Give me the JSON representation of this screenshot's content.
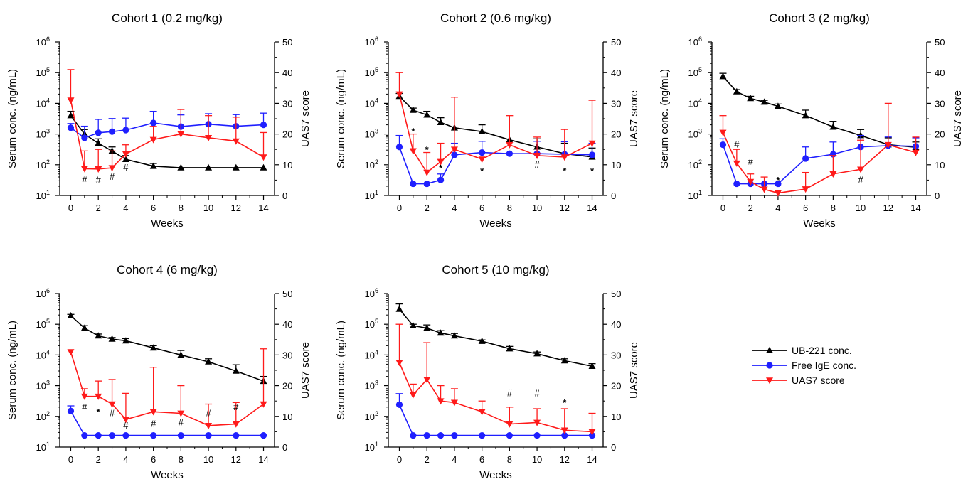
{
  "legend": {
    "entries": [
      {
        "key": "ub221",
        "label": "UB-221 conc.",
        "color": "#000000",
        "marker": "triangle-up"
      },
      {
        "key": "ige",
        "label": "Free IgE conc.",
        "color": "#1f1fff",
        "marker": "circle"
      },
      {
        "key": "uas7",
        "label": "UAS7 score",
        "color": "#ff1a1a",
        "marker": "triangle-down"
      }
    ]
  },
  "chart_data": [
    {
      "type": "line",
      "title": "Cohort 1 (0.2 mg/kg)",
      "xlabel": "Weeks",
      "ylabel_left": "Serum conc. (ng/mL)",
      "ylabel_right": "UAS7 score",
      "x_ticks": [
        0,
        2,
        4,
        6,
        8,
        10,
        12,
        14
      ],
      "xlim": [
        -0.8,
        14.8
      ],
      "ylim_left": [
        10,
        1000000
      ],
      "yscale_left": "log",
      "ylim_right": [
        0,
        50
      ],
      "series": [
        {
          "name": "UB-221 conc.",
          "axis": "left",
          "color": "#000000",
          "marker": "triangle-up",
          "x": [
            0,
            1,
            2,
            3,
            4,
            6,
            8,
            10,
            12,
            14
          ],
          "y": [
            4000,
            1000,
            500,
            280,
            150,
            90,
            80,
            80,
            80,
            80
          ],
          "err_upper": [
            5500,
            1400,
            700,
            380,
            200,
            110,
            null,
            null,
            null,
            null
          ]
        },
        {
          "name": "Free IgE conc.",
          "axis": "left",
          "color": "#1f1fff",
          "marker": "circle",
          "x": [
            0,
            1,
            2,
            3,
            4,
            6,
            8,
            10,
            12,
            14
          ],
          "y": [
            1600,
            750,
            1100,
            1200,
            1350,
            2300,
            1750,
            2100,
            1800,
            2000
          ],
          "err_upper": [
            2200,
            1800,
            3000,
            3200,
            3300,
            5500,
            4200,
            4600,
            4300,
            4800
          ]
        },
        {
          "name": "UAS7 score",
          "axis": "right",
          "color": "#ff1a1a",
          "marker": "triangle-down",
          "x": [
            0,
            1,
            2,
            3,
            4,
            6,
            8,
            10,
            12,
            14
          ],
          "y": [
            31,
            8.7,
            8.6,
            9,
            13.5,
            18.2,
            20,
            18.8,
            17.7,
            12.5
          ],
          "err_upper": [
            41,
            14.5,
            15,
            14.5,
            16.5,
            22.5,
            28,
            26,
            25.5,
            20.5
          ]
        }
      ],
      "annotations": [
        {
          "text": "#",
          "x": 1,
          "y_right": 5
        },
        {
          "text": "#",
          "x": 2,
          "y_right": 5
        },
        {
          "text": "#",
          "x": 3,
          "y_right": 6
        },
        {
          "text": "#",
          "x": 4,
          "y_right": 9
        }
      ]
    },
    {
      "type": "line",
      "title": "Cohort 2 (0.6 mg/kg)",
      "xlabel": "Weeks",
      "ylabel_left": "Serum conc. (ng/mL)",
      "ylabel_right": "UAS7 score",
      "x_ticks": [
        0,
        2,
        4,
        6,
        8,
        10,
        12,
        14
      ],
      "xlim": [
        -0.8,
        14.8
      ],
      "ylim_left": [
        10,
        1000000
      ],
      "yscale_left": "log",
      "ylim_right": [
        0,
        50
      ],
      "series": [
        {
          "name": "UB-221 conc.",
          "axis": "left",
          "color": "#000000",
          "marker": "triangle-up",
          "x": [
            0,
            1,
            2,
            3,
            4,
            6,
            8,
            10,
            12,
            14
          ],
          "y": [
            17000,
            6000,
            4200,
            2400,
            1600,
            1200,
            650,
            380,
            230,
            180
          ],
          "err_upper": [
            21000,
            7000,
            5500,
            3400,
            null,
            2000,
            null,
            700,
            500,
            350
          ]
        },
        {
          "name": "Free IgE conc.",
          "axis": "left",
          "color": "#1f1fff",
          "marker": "circle",
          "x": [
            0,
            1,
            2,
            3,
            4,
            6,
            8,
            10,
            12,
            14
          ],
          "y": [
            380,
            24,
            24,
            32,
            210,
            250,
            230,
            230,
            220,
            210
          ],
          "err_upper": [
            900,
            null,
            null,
            50,
            500,
            580,
            null,
            580,
            560,
            500
          ]
        },
        {
          "name": "UAS7 score",
          "axis": "right",
          "color": "#ff1a1a",
          "marker": "triangle-down",
          "x": [
            0,
            1,
            2,
            3,
            4,
            6,
            8,
            10,
            12,
            14
          ],
          "y": [
            33,
            14.5,
            7.5,
            11,
            15,
            11.8,
            16.5,
            13,
            12.5,
            17
          ],
          "err_upper": [
            40,
            20,
            14,
            17,
            32,
            null,
            26,
            19,
            21.5,
            31
          ]
        }
      ],
      "annotations": [
        {
          "text": "*",
          "x": 1,
          "y_right": 22
        },
        {
          "text": "*",
          "x": 2,
          "y_right": 16
        },
        {
          "text": "*",
          "x": 3,
          "y_right": 10
        },
        {
          "text": "*",
          "x": 6,
          "y_right": 9
        },
        {
          "text": "#",
          "x": 10,
          "y_right": 10
        },
        {
          "text": "*",
          "x": 12,
          "y_right": 9
        },
        {
          "text": "*",
          "x": 14,
          "y_right": 9
        }
      ]
    },
    {
      "type": "line",
      "title": "Cohort 3 (2 mg/kg)",
      "xlabel": "Weeks",
      "ylabel_left": "Serum conc. (ng/mL)",
      "ylabel_right": "UAS7 score",
      "x_ticks": [
        0,
        2,
        4,
        6,
        8,
        10,
        12,
        14
      ],
      "xlim": [
        -0.8,
        14.8
      ],
      "ylim_left": [
        10,
        1000000
      ],
      "yscale_left": "log",
      "ylim_right": [
        0,
        50
      ],
      "series": [
        {
          "name": "UB-221 conc.",
          "axis": "left",
          "color": "#000000",
          "marker": "triangle-up",
          "x": [
            0,
            1,
            2,
            3,
            4,
            6,
            8,
            10,
            12,
            14
          ],
          "y": [
            75000,
            24000,
            14500,
            11000,
            8000,
            4000,
            1700,
            900,
            450,
            370
          ],
          "err_upper": [
            95000,
            28000,
            17000,
            12500,
            9500,
            6000,
            2600,
            1400,
            750,
            550
          ]
        },
        {
          "name": "Free IgE conc.",
          "axis": "left",
          "color": "#1f1fff",
          "marker": "circle",
          "x": [
            0,
            1,
            2,
            3,
            4,
            6,
            8,
            10,
            12,
            14
          ],
          "y": [
            450,
            24,
            24,
            24,
            24,
            160,
            220,
            380,
            420,
            400
          ],
          "err_upper": [
            700,
            null,
            null,
            null,
            null,
            380,
            550,
            900,
            800,
            750
          ]
        },
        {
          "name": "UAS7 score",
          "axis": "right",
          "color": "#ff1a1a",
          "marker": "triangle-down",
          "x": [
            0,
            1,
            2,
            3,
            4,
            6,
            8,
            10,
            12,
            14
          ],
          "y": [
            20.5,
            10.5,
            4.5,
            2,
            0.8,
            2.1,
            7,
            8.5,
            16.5,
            14
          ],
          "err_upper": [
            26,
            15,
            7,
            6,
            null,
            7.5,
            13,
            18,
            30,
            19
          ]
        }
      ],
      "annotations": [
        {
          "text": "#",
          "x": 1,
          "y_right": 16.5
        },
        {
          "text": "#",
          "x": 2,
          "y_right": 11
        },
        {
          "text": "*",
          "x": 4,
          "y_right": 6
        },
        {
          "text": "#",
          "x": 10,
          "y_right": 5
        }
      ]
    },
    {
      "type": "line",
      "title": "Cohort 4 (6 mg/kg)",
      "xlabel": "Weeks",
      "ylabel_left": "Serum conc. (ng/mL)",
      "ylabel_right": "UAS7 score",
      "x_ticks": [
        0,
        2,
        4,
        6,
        8,
        10,
        12,
        14
      ],
      "xlim": [
        -0.8,
        14.8
      ],
      "ylim_left": [
        10,
        1000000
      ],
      "yscale_left": "log",
      "ylim_right": [
        0,
        50
      ],
      "series": [
        {
          "name": "UB-221 conc.",
          "axis": "left",
          "color": "#000000",
          "marker": "triangle-up",
          "x": [
            0,
            1,
            2,
            3,
            4,
            6,
            8,
            10,
            12,
            14
          ],
          "y": [
            190000,
            75000,
            42000,
            33000,
            29000,
            17000,
            10000,
            6000,
            3000,
            1400
          ],
          "err_upper": [
            210000,
            90000,
            48000,
            37000,
            34000,
            20000,
            14000,
            7500,
            4800,
            2000
          ]
        },
        {
          "name": "Free IgE conc.",
          "axis": "left",
          "color": "#1f1fff",
          "marker": "circle",
          "x": [
            0,
            1,
            2,
            3,
            4,
            6,
            8,
            10,
            12,
            14
          ],
          "y": [
            150,
            24,
            24,
            24,
            24,
            24,
            24,
            24,
            24,
            24
          ],
          "err_upper": [
            220,
            null,
            null,
            null,
            null,
            null,
            null,
            null,
            null,
            null
          ]
        },
        {
          "name": "UAS7 score",
          "axis": "right",
          "color": "#ff1a1a",
          "marker": "triangle-down",
          "x": [
            0,
            1,
            2,
            3,
            4,
            6,
            8,
            10,
            12,
            14
          ],
          "y": [
            31,
            16.5,
            16.5,
            14,
            9,
            11.5,
            11,
            7,
            7.5,
            14
          ],
          "err_upper": [
            null,
            19,
            21.5,
            22,
            17.5,
            26,
            20,
            14,
            14.5,
            32
          ]
        }
      ],
      "annotations": [
        {
          "text": "#",
          "x": 1,
          "y_right": 13
        },
        {
          "text": "*",
          "x": 2,
          "y_right": 12.5
        },
        {
          "text": "#",
          "x": 3,
          "y_right": 11
        },
        {
          "text": "#",
          "x": 4,
          "y_right": 7
        },
        {
          "text": "#",
          "x": 6,
          "y_right": 7.5
        },
        {
          "text": "#",
          "x": 8,
          "y_right": 8
        },
        {
          "text": "#",
          "x": 10,
          "y_right": 11
        },
        {
          "text": "#",
          "x": 12,
          "y_right": 13
        }
      ]
    },
    {
      "type": "line",
      "title": "Cohort 5 (10 mg/kg)",
      "xlabel": "Weeks",
      "ylabel_left": "Serum conc. (ng/mL)",
      "ylabel_right": "UAS7 score",
      "x_ticks": [
        0,
        2,
        4,
        6,
        8,
        10,
        12,
        14
      ],
      "xlim": [
        -0.8,
        14.8
      ],
      "ylim_left": [
        10,
        1000000
      ],
      "yscale_left": "log",
      "ylim_right": [
        0,
        50
      ],
      "series": [
        {
          "name": "UB-221 conc.",
          "axis": "left",
          "color": "#000000",
          "marker": "triangle-up",
          "x": [
            0,
            1,
            2,
            3,
            4,
            6,
            8,
            10,
            12,
            14
          ],
          "y": [
            310000,
            90000,
            75000,
            52000,
            42000,
            28000,
            16000,
            11000,
            6500,
            4300
          ],
          "err_upper": [
            460000,
            100000,
            95000,
            62000,
            50000,
            31000,
            19000,
            12500,
            7500,
            5200
          ]
        },
        {
          "name": "Free IgE conc.",
          "axis": "left",
          "color": "#1f1fff",
          "marker": "circle",
          "x": [
            0,
            1,
            2,
            3,
            4,
            6,
            8,
            10,
            12,
            14
          ],
          "y": [
            240,
            24,
            24,
            24,
            24,
            24,
            24,
            24,
            24,
            24
          ],
          "err_upper": [
            550,
            null,
            null,
            null,
            null,
            null,
            null,
            null,
            null,
            null
          ]
        },
        {
          "name": "UAS7 score",
          "axis": "right",
          "color": "#ff1a1a",
          "marker": "triangle-down",
          "x": [
            0,
            1,
            2,
            3,
            4,
            6,
            8,
            10,
            12,
            14
          ],
          "y": [
            27.5,
            17,
            22,
            15,
            14.5,
            11.5,
            7.5,
            8,
            5.5,
            5
          ],
          "err_upper": [
            40,
            20.5,
            34,
            20,
            19,
            15,
            13,
            12.5,
            12.5,
            11
          ]
        }
      ],
      "annotations": [
        {
          "text": "#",
          "x": 8,
          "y_right": 17.5
        },
        {
          "text": "#",
          "x": 10,
          "y_right": 17.5
        },
        {
          "text": "*",
          "x": 12,
          "y_right": 15.5
        }
      ]
    }
  ]
}
